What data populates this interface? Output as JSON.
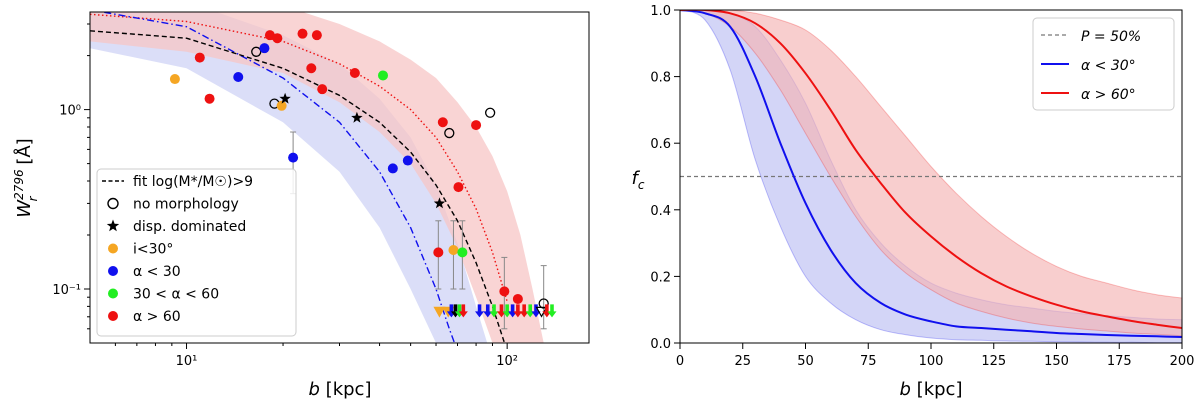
{
  "chart_data": [
    {
      "type": "scatter",
      "panel": "left",
      "xscale": "log",
      "yscale": "log",
      "xlim": [
        5,
        180
      ],
      "ylim": [
        0.05,
        3.5
      ],
      "xlabel": "b [kpc]",
      "ylabel": "W_r^2796 [Å]",
      "x_ticks": [
        {
          "v": 10,
          "label": "10¹"
        },
        {
          "v": 100,
          "label": "10²"
        }
      ],
      "y_ticks": [
        {
          "v": 0.1,
          "label": "10⁻¹"
        },
        {
          "v": 1,
          "label": "10⁰"
        }
      ],
      "legend": {
        "position": "lower-left",
        "entries": [
          {
            "label": "fit log(M*/M☉)>9",
            "marker": "dashed-line",
            "color": "#000000"
          },
          {
            "label": "no morphology",
            "marker": "open-circle",
            "color": "#000000"
          },
          {
            "label": "disp. dominated",
            "marker": "star",
            "color": "#000000"
          },
          {
            "label": "i<30°",
            "marker": "circle",
            "color": "#f5a623"
          },
          {
            "label": "α < 30",
            "marker": "circle",
            "color": "#1010ee"
          },
          {
            "label": "30 < α < 60",
            "marker": "circle",
            "color": "#22ee22"
          },
          {
            "label": "α > 60",
            "marker": "circle",
            "color": "#ee1111"
          }
        ]
      },
      "colors": {
        "red": "#ee1111",
        "blue": "#1010ee",
        "green": "#22ee22",
        "orange": "#f5a623",
        "black": "#000000",
        "red_band": "#f7c5c5",
        "blue_band": "#ccd0f5"
      },
      "fits": {
        "all": {
          "style": "dashed",
          "color": "#000000",
          "x": [
            5,
            10,
            20,
            30,
            40,
            50,
            60,
            70,
            80,
            90,
            100
          ],
          "y": [
            2.75,
            2.5,
            1.7,
            1.2,
            0.85,
            0.58,
            0.38,
            0.24,
            0.14,
            0.08,
            0.045
          ]
        },
        "red": {
          "style": "dotted",
          "color": "#ee1111",
          "x": [
            5,
            10,
            20,
            30,
            40,
            50,
            60,
            70,
            80,
            90,
            100
          ],
          "y": [
            3.4,
            3.1,
            2.4,
            1.8,
            1.35,
            1.0,
            0.7,
            0.45,
            0.28,
            0.16,
            0.085
          ]
        },
        "blue": {
          "style": "dashdot",
          "color": "#1010ee",
          "x": [
            5,
            10,
            20,
            30,
            40,
            50,
            60,
            66,
            70
          ],
          "y": [
            3.6,
            2.9,
            1.5,
            0.85,
            0.45,
            0.22,
            0.1,
            0.06,
            0.045
          ]
        }
      },
      "bands": {
        "red": {
          "x": [
            5,
            10,
            20,
            30,
            40,
            50,
            60,
            70,
            80,
            90,
            100,
            110,
            120,
            130
          ],
          "upper": [
            4,
            4,
            3.8,
            3.0,
            2.4,
            1.9,
            1.5,
            1.1,
            0.8,
            0.55,
            0.35,
            0.2,
            0.1,
            0.05
          ],
          "lower": [
            2.4,
            2.1,
            1.6,
            1.1,
            0.75,
            0.5,
            0.3,
            0.17,
            0.09,
            0.05,
            0.03,
            0.03,
            0.03,
            0.03
          ]
        },
        "blue": {
          "x": [
            5,
            10,
            20,
            30,
            40,
            50,
            60,
            70,
            80,
            90
          ],
          "upper": [
            4,
            4,
            2.6,
            1.8,
            1.15,
            0.7,
            0.38,
            0.18,
            0.08,
            0.04
          ],
          "lower": [
            2.2,
            1.7,
            0.85,
            0.45,
            0.22,
            0.1,
            0.05,
            0.03,
            0.03,
            0.03
          ]
        }
      },
      "points": [
        {
          "x": 9.2,
          "y": 1.48,
          "color": "orange",
          "marker": "circle"
        },
        {
          "x": 11,
          "y": 1.95,
          "color": "red",
          "marker": "circle"
        },
        {
          "x": 11.8,
          "y": 1.15,
          "color": "red",
          "marker": "circle"
        },
        {
          "x": 14.5,
          "y": 1.52,
          "color": "blue",
          "marker": "circle"
        },
        {
          "x": 16.5,
          "y": 2.1,
          "color": "black",
          "marker": "open-circle"
        },
        {
          "x": 17.5,
          "y": 2.2,
          "color": "blue",
          "marker": "circle"
        },
        {
          "x": 18.2,
          "y": 2.6,
          "color": "red",
          "marker": "circle"
        },
        {
          "x": 19.2,
          "y": 2.5,
          "color": "red",
          "marker": "circle"
        },
        {
          "x": 18.8,
          "y": 1.08,
          "color": "black",
          "marker": "open-circle"
        },
        {
          "x": 19.8,
          "y": 1.05,
          "color": "orange",
          "marker": "circle"
        },
        {
          "x": 20.3,
          "y": 1.15,
          "color": "black",
          "marker": "star"
        },
        {
          "x": 21.5,
          "y": 0.54,
          "color": "blue",
          "marker": "circle",
          "err": [
            0.34,
            0.75
          ]
        },
        {
          "x": 23,
          "y": 2.65,
          "color": "red",
          "marker": "circle"
        },
        {
          "x": 25.5,
          "y": 2.6,
          "color": "red",
          "marker": "circle"
        },
        {
          "x": 24.5,
          "y": 1.7,
          "color": "red",
          "marker": "circle"
        },
        {
          "x": 26.5,
          "y": 1.3,
          "color": "red",
          "marker": "circle"
        },
        {
          "x": 34,
          "y": 0.9,
          "color": "black",
          "marker": "star"
        },
        {
          "x": 33.5,
          "y": 1.6,
          "color": "red",
          "marker": "circle"
        },
        {
          "x": 41,
          "y": 1.55,
          "color": "green",
          "marker": "circle"
        },
        {
          "x": 44,
          "y": 0.47,
          "color": "blue",
          "marker": "circle"
        },
        {
          "x": 49,
          "y": 0.52,
          "color": "blue",
          "marker": "circle"
        },
        {
          "x": 61.5,
          "y": 0.3,
          "color": "black",
          "marker": "star"
        },
        {
          "x": 61,
          "y": 0.16,
          "color": "red",
          "marker": "circle",
          "err": [
            0.1,
            0.24
          ]
        },
        {
          "x": 63,
          "y": 0.85,
          "color": "red",
          "marker": "circle"
        },
        {
          "x": 66,
          "y": 0.74,
          "color": "black",
          "marker": "open-circle"
        },
        {
          "x": 68,
          "y": 0.165,
          "color": "orange",
          "marker": "circle",
          "err": [
            0.1,
            0.24
          ]
        },
        {
          "x": 70.5,
          "y": 0.37,
          "color": "red",
          "marker": "circle"
        },
        {
          "x": 72.5,
          "y": 0.16,
          "color": "green",
          "marker": "circle",
          "err": [
            0.1,
            0.24
          ]
        },
        {
          "x": 80,
          "y": 0.82,
          "color": "red",
          "marker": "circle"
        },
        {
          "x": 88.5,
          "y": 0.96,
          "color": "black",
          "marker": "open-circle"
        },
        {
          "x": 98,
          "y": 0.097,
          "color": "red",
          "marker": "circle",
          "err": [
            0.06,
            0.15
          ]
        },
        {
          "x": 108,
          "y": 0.088,
          "color": "red",
          "marker": "circle"
        },
        {
          "x": 130,
          "y": 0.083,
          "color": "black",
          "marker": "open-circle",
          "err": [
            0.06,
            0.135
          ]
        }
      ],
      "upper_limits": [
        {
          "x": 61.5,
          "y": 0.075,
          "color": "orange",
          "shape": "triangle"
        },
        {
          "x": 65.5,
          "y": 0.075,
          "color": "orange",
          "shape": "triangle"
        },
        {
          "x": 67,
          "y": 0.075,
          "color": "blue",
          "shape": "arrow"
        },
        {
          "x": 69,
          "y": 0.075,
          "color": "black",
          "shape": "arrow"
        },
        {
          "x": 71,
          "y": 0.075,
          "color": "green",
          "shape": "arrow"
        },
        {
          "x": 73,
          "y": 0.075,
          "color": "red",
          "shape": "arrow"
        },
        {
          "x": 82,
          "y": 0.075,
          "color": "blue",
          "shape": "arrow"
        },
        {
          "x": 87,
          "y": 0.075,
          "color": "blue",
          "shape": "arrow"
        },
        {
          "x": 91,
          "y": 0.075,
          "color": "green",
          "shape": "arrow"
        },
        {
          "x": 96,
          "y": 0.075,
          "color": "red",
          "shape": "arrow"
        },
        {
          "x": 100,
          "y": 0.075,
          "color": "green",
          "shape": "arrow"
        },
        {
          "x": 104,
          "y": 0.075,
          "color": "blue",
          "shape": "arrow"
        },
        {
          "x": 108,
          "y": 0.075,
          "color": "red",
          "shape": "arrow"
        },
        {
          "x": 113,
          "y": 0.075,
          "color": "red",
          "shape": "arrow"
        },
        {
          "x": 118,
          "y": 0.075,
          "color": "green",
          "shape": "arrow"
        },
        {
          "x": 123,
          "y": 0.075,
          "color": "blue",
          "shape": "arrow"
        },
        {
          "x": 128,
          "y": 0.075,
          "color": "black",
          "shape": "triangle"
        },
        {
          "x": 133,
          "y": 0.075,
          "color": "red",
          "shape": "arrow"
        },
        {
          "x": 138,
          "y": 0.075,
          "color": "green",
          "shape": "arrow"
        }
      ]
    },
    {
      "type": "line",
      "panel": "right",
      "xlim": [
        0,
        200
      ],
      "ylim": [
        0,
        1.0
      ],
      "xlabel": "b [kpc]",
      "ylabel": "f_c",
      "x_ticks": [
        "0",
        "25",
        "50",
        "75",
        "100",
        "125",
        "150",
        "175",
        "200"
      ],
      "y_ticks": [
        "0.0",
        "0.2",
        "0.4",
        "0.6",
        "0.8",
        "1.0"
      ],
      "reference_line": {
        "y": 0.5,
        "label": "P = 50%",
        "style": "dashed",
        "color": "#777777"
      },
      "legend": {
        "position": "top-right",
        "entries": [
          {
            "label": "P = 50%",
            "style": "dashed",
            "color": "#777777"
          },
          {
            "label": "α < 30°",
            "style": "solid",
            "color": "#1010ee"
          },
          {
            "label": "α > 60°",
            "style": "solid",
            "color": "#ee1111"
          }
        ]
      },
      "x": [
        0,
        10,
        20,
        30,
        40,
        50,
        60,
        70,
        80,
        90,
        100,
        110,
        120,
        130,
        140,
        150,
        160,
        170,
        180,
        190,
        200
      ],
      "series": [
        {
          "name": "α < 30°",
          "color": "#1010ee",
          "band_color": "#bcbff2",
          "values": [
            1.0,
            0.99,
            0.95,
            0.8,
            0.6,
            0.42,
            0.28,
            0.18,
            0.12,
            0.085,
            0.065,
            0.05,
            0.045,
            0.04,
            0.035,
            0.03,
            0.027,
            0.024,
            0.022,
            0.02,
            0.018
          ],
          "upper": [
            1.0,
            1.0,
            0.99,
            0.95,
            0.85,
            0.72,
            0.55,
            0.4,
            0.3,
            0.23,
            0.18,
            0.15,
            0.13,
            0.115,
            0.105,
            0.095,
            0.088,
            0.082,
            0.077,
            0.072,
            0.07
          ],
          "lower": [
            1.0,
            0.97,
            0.82,
            0.55,
            0.35,
            0.2,
            0.12,
            0.07,
            0.04,
            0.025,
            0.015,
            0.01,
            0.008,
            0.006,
            0.005,
            0.004,
            0.003,
            0.002,
            0.002,
            0.001,
            0.001
          ]
        },
        {
          "name": "α > 60°",
          "color": "#ee1111",
          "band_color": "#f5b3b3",
          "values": [
            1.0,
            1.0,
            0.99,
            0.96,
            0.9,
            0.81,
            0.7,
            0.58,
            0.48,
            0.39,
            0.32,
            0.26,
            0.21,
            0.17,
            0.14,
            0.115,
            0.095,
            0.08,
            0.066,
            0.055,
            0.045
          ],
          "upper": [
            1.0,
            1.0,
            1.0,
            0.99,
            0.97,
            0.94,
            0.88,
            0.8,
            0.71,
            0.62,
            0.53,
            0.45,
            0.38,
            0.32,
            0.27,
            0.23,
            0.2,
            0.18,
            0.16,
            0.145,
            0.135
          ],
          "lower": [
            1.0,
            0.99,
            0.95,
            0.87,
            0.76,
            0.63,
            0.5,
            0.38,
            0.28,
            0.21,
            0.16,
            0.12,
            0.095,
            0.075,
            0.06,
            0.05,
            0.042,
            0.036,
            0.03,
            0.026,
            0.022
          ]
        }
      ]
    }
  ]
}
